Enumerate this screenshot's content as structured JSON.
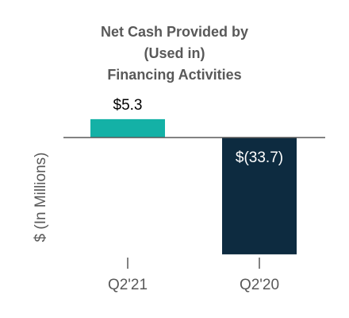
{
  "chart_data": {
    "type": "bar",
    "title": [
      "Net Cash Provided by",
      "(Used in)",
      "Financing Activities"
    ],
    "ylabel": "$ (In Millions)",
    "xlabel": "",
    "categories": [
      "Q2'21",
      "Q2'20"
    ],
    "values": [
      5.3,
      -33.7
    ],
    "data_labels": [
      "$5.3",
      "$(33.7)"
    ],
    "bar_colors": [
      "#14b1a6",
      "#0d2b40"
    ],
    "data_label_colors": [
      "#000000",
      "#ffffff"
    ],
    "ylim": [
      -33.7,
      5.3
    ],
    "grid": false,
    "legend": "none"
  },
  "colors": {
    "axis_line": "#595959",
    "text": "#595959"
  }
}
